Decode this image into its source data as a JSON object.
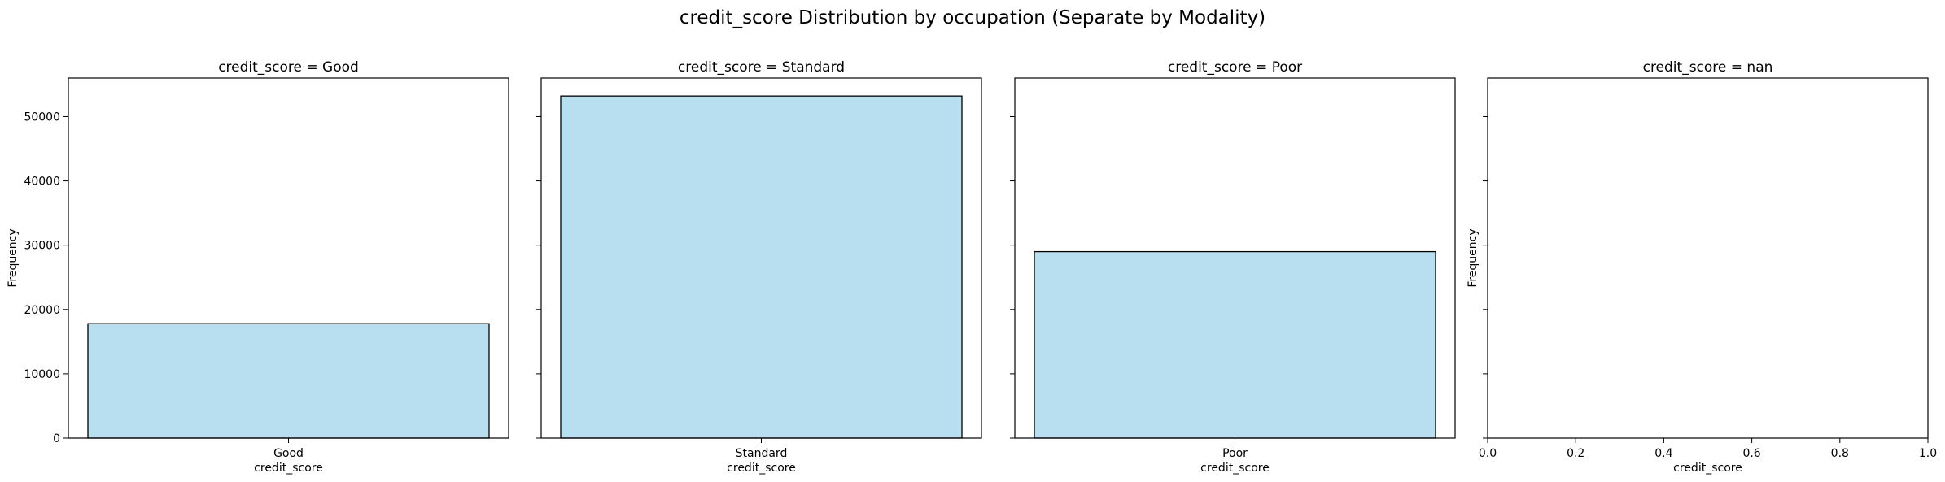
{
  "figure": {
    "title": "credit_score Distribution by occupation (Separate by Modality)"
  },
  "chart_data": [
    {
      "type": "bar",
      "title": "credit_score = Good",
      "categories": [
        "Good"
      ],
      "values": [
        17800
      ],
      "xlabel": "credit_score",
      "ylabel": "Frequency",
      "ylim": [
        0,
        56000
      ],
      "yticks": [
        0,
        10000,
        20000,
        30000,
        40000,
        50000
      ],
      "ytick_labels_visible": true,
      "bar_color": "#b8dff0",
      "edge_color": "#000000",
      "grid": false
    },
    {
      "type": "bar",
      "title": "credit_score = Standard",
      "categories": [
        "Standard"
      ],
      "values": [
        53200
      ],
      "xlabel": "credit_score",
      "ylabel": "",
      "ylim": [
        0,
        56000
      ],
      "yticks": [
        0,
        10000,
        20000,
        30000,
        40000,
        50000
      ],
      "ytick_labels_visible": false,
      "bar_color": "#b8dff0",
      "edge_color": "#000000",
      "grid": false
    },
    {
      "type": "bar",
      "title": "credit_score = Poor",
      "categories": [
        "Poor"
      ],
      "values": [
        29000
      ],
      "xlabel": "credit_score",
      "ylabel": "",
      "ylim": [
        0,
        56000
      ],
      "yticks": [
        0,
        10000,
        20000,
        30000,
        40000,
        50000
      ],
      "ytick_labels_visible": false,
      "bar_color": "#b8dff0",
      "edge_color": "#000000",
      "grid": false
    },
    {
      "type": "bar",
      "title": "credit_score = nan",
      "categories": [],
      "values": [],
      "xlabel": "credit_score",
      "ylabel": "Frequency",
      "ylim": [
        0,
        56000
      ],
      "yticks": [
        0,
        10000,
        20000,
        30000,
        40000,
        50000
      ],
      "ytick_labels_visible": false,
      "xlim": [
        0,
        1
      ],
      "xticks": [
        "0.0",
        "0.2",
        "0.4",
        "0.6",
        "0.8",
        "1.0"
      ],
      "bar_color": "#b8dff0",
      "edge_color": "#000000",
      "grid": false
    }
  ]
}
